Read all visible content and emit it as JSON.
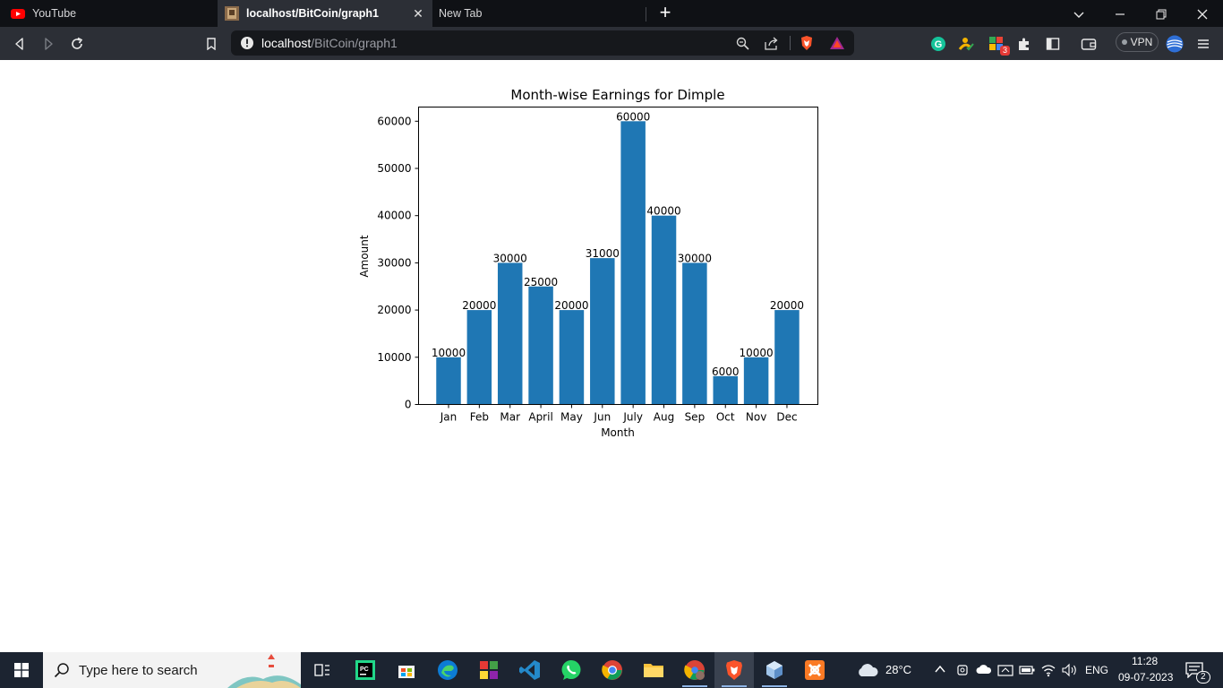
{
  "browser": {
    "tabs": [
      {
        "title": "YouTube",
        "active": false
      },
      {
        "title": "localhost/BitCoin/graph1",
        "active": true
      },
      {
        "title": "New Tab",
        "active": false
      }
    ],
    "address": {
      "host": "localhost",
      "path": "/BitCoin/graph1"
    },
    "vpn_label": "VPN",
    "extension_badge": "3",
    "icons": [
      "back-icon",
      "forward-icon",
      "reload-icon",
      "bookmark-icon",
      "site-info-icon",
      "zoom-icon",
      "share-icon",
      "brave-shields-icon",
      "brave-rewards-icon",
      "grammarly-icon",
      "extensions-icon",
      "sidebar-icon",
      "wallet-icon",
      "menu-icon"
    ]
  },
  "chart_data": {
    "type": "bar",
    "title": "Month-wise Earnings for Dimple",
    "xlabel": "Month",
    "ylabel": "Amount",
    "categories": [
      "Jan",
      "Feb",
      "Mar",
      "April",
      "May",
      "Jun",
      "July",
      "Aug",
      "Sep",
      "Oct",
      "Nov",
      "Dec"
    ],
    "values": [
      10000,
      20000,
      30000,
      25000,
      20000,
      31000,
      60000,
      40000,
      30000,
      6000,
      10000,
      20000
    ],
    "yticks": [
      0,
      10000,
      20000,
      30000,
      40000,
      50000,
      60000
    ],
    "ylim": [
      0,
      63000
    ],
    "bar_color": "#1f77b4",
    "data_labels": true,
    "grid": false,
    "legend": "none"
  },
  "taskbar": {
    "search_placeholder": "Type here to search",
    "weather": "28°C",
    "language": "ENG",
    "time": "11:28",
    "date": "09-07-2023",
    "notification_count": "2"
  }
}
